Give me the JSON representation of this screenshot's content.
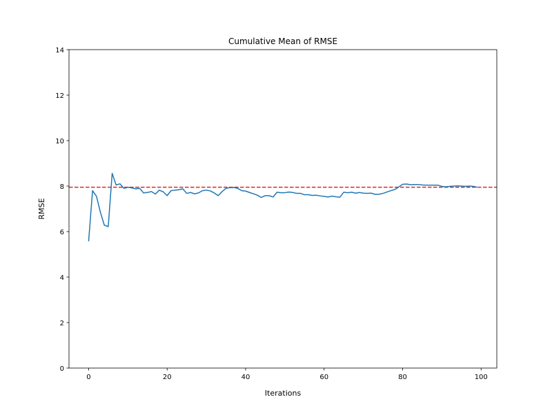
{
  "chart_data": {
    "type": "line",
    "title": "Cumulative Mean of RMSE",
    "xlabel": "Iterations",
    "ylabel": "RMSE",
    "xlim": [
      -5,
      104
    ],
    "ylim": [
      0,
      14
    ],
    "xticks": [
      0,
      20,
      40,
      60,
      80,
      100
    ],
    "yticks": [
      0,
      2,
      4,
      6,
      8,
      10,
      12,
      14
    ],
    "grid": false,
    "series": [
      {
        "color": "#1f77b4",
        "x": [
          0,
          1,
          2,
          3,
          4,
          5,
          6,
          7,
          8,
          9,
          10,
          11,
          12,
          13,
          14,
          15,
          16,
          17,
          18,
          19,
          20,
          21,
          22,
          23,
          24,
          25,
          26,
          27,
          28,
          29,
          30,
          31,
          32,
          33,
          34,
          35,
          36,
          37,
          38,
          39,
          40,
          41,
          42,
          43,
          44,
          45,
          46,
          47,
          48,
          49,
          50,
          51,
          52,
          53,
          54,
          55,
          56,
          57,
          58,
          59,
          60,
          61,
          62,
          63,
          64,
          65,
          66,
          67,
          68,
          69,
          70,
          71,
          72,
          73,
          74,
          75,
          76,
          77,
          78,
          79,
          80,
          81,
          82,
          83,
          84,
          85,
          86,
          87,
          88,
          89,
          90,
          91,
          92,
          93,
          94,
          95,
          96,
          97,
          98,
          99
        ],
        "y": [
          5.57,
          7.8,
          7.55,
          6.85,
          6.28,
          6.22,
          8.56,
          8.05,
          8.1,
          7.9,
          7.95,
          7.92,
          7.88,
          7.9,
          7.7,
          7.72,
          7.76,
          7.65,
          7.82,
          7.75,
          7.58,
          7.8,
          7.82,
          7.84,
          7.88,
          7.68,
          7.72,
          7.66,
          7.7,
          7.8,
          7.82,
          7.79,
          7.7,
          7.58,
          7.76,
          7.9,
          7.93,
          7.94,
          7.9,
          7.8,
          7.78,
          7.72,
          7.66,
          7.6,
          7.5,
          7.58,
          7.58,
          7.52,
          7.73,
          7.71,
          7.71,
          7.74,
          7.72,
          7.68,
          7.68,
          7.62,
          7.62,
          7.59,
          7.6,
          7.57,
          7.55,
          7.52,
          7.56,
          7.53,
          7.51,
          7.73,
          7.71,
          7.73,
          7.69,
          7.72,
          7.69,
          7.68,
          7.69,
          7.64,
          7.64,
          7.68,
          7.74,
          7.8,
          7.85,
          7.96,
          8.08,
          8.09,
          8.06,
          8.07,
          8.07,
          8.05,
          8.04,
          8.04,
          8.04,
          8.04,
          7.99,
          7.97,
          7.99,
          8.0,
          8.01,
          8.0,
          7.99,
          8.0,
          7.99,
          7.95
        ]
      }
    ],
    "reference_lines": [
      {
        "orientation": "horizontal",
        "y": 7.95,
        "color": "#d62728",
        "style": "dashed"
      }
    ]
  }
}
